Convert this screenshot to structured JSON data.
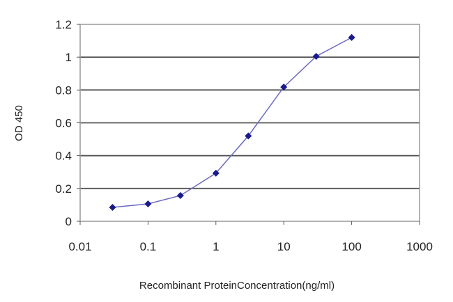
{
  "chart_data": {
    "type": "line",
    "title": "",
    "xlabel": "Recombinant ProteinConcentration(ng/ml)",
    "ylabel": "OD 450",
    "x_scale": "log",
    "xlim": [
      0.01,
      1000
    ],
    "ylim": [
      0,
      1.2
    ],
    "x_ticks": [
      "0.01",
      "0.1",
      "1",
      "10",
      "100",
      "1000"
    ],
    "y_ticks": [
      "0",
      "0.2",
      "0.4",
      "0.6",
      "0.8",
      "1",
      "1.2"
    ],
    "grid": "horizontal",
    "series": [
      {
        "x": [
          0.03,
          0.1,
          0.3,
          1,
          3,
          10,
          30,
          100
        ],
        "y": [
          0.085,
          0.106,
          0.157,
          0.293,
          0.52,
          0.818,
          1.005,
          1.12
        ],
        "color": "#1a1a8c"
      }
    ]
  }
}
